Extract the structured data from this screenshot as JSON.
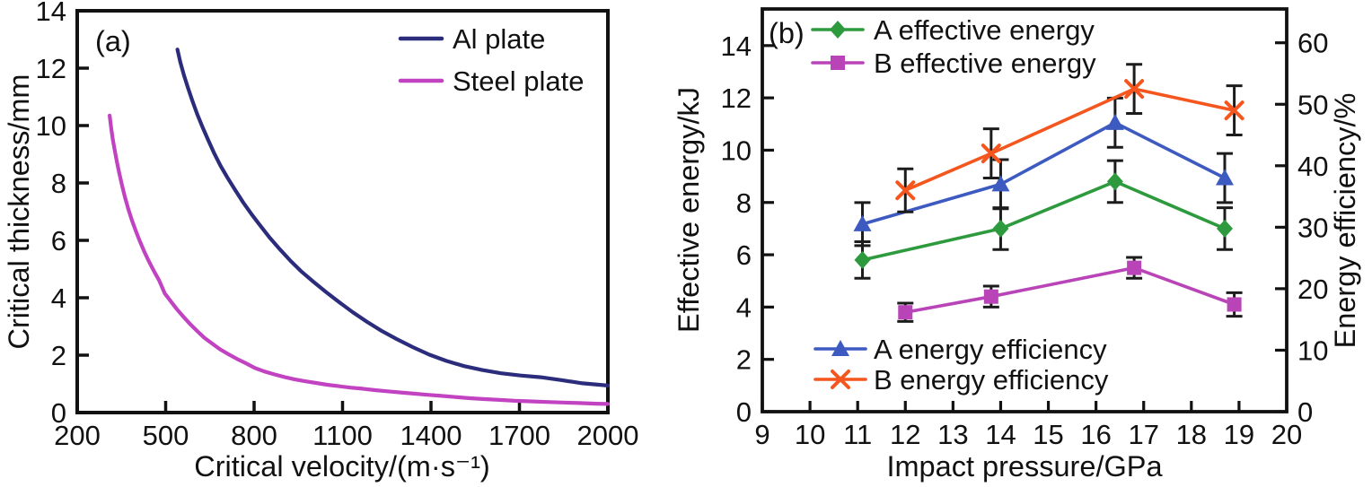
{
  "figure": {
    "background": "#ffffff",
    "axis_color": "#111111",
    "error_bar_color": "#1c1c1c"
  },
  "chart_data": [
    {
      "id": "a",
      "type": "line",
      "panel_label": "(a)",
      "xlabel": "Critical velocity/(m·s⁻¹)",
      "ylabel": "Critical thickness/mm",
      "xlim": [
        200,
        2000
      ],
      "ylim": [
        0,
        14
      ],
      "xticks": [
        200,
        500,
        800,
        1100,
        1400,
        1700,
        2000
      ],
      "yticks": [
        0,
        2,
        4,
        6,
        8,
        10,
        12,
        14
      ],
      "grid": false,
      "legend_position": "top-right",
      "series": [
        {
          "name": "Al plate",
          "color": "#2c2c7c",
          "marker": "none",
          "points": [
            [
              540,
              12.65
            ],
            [
              550,
              12.2
            ],
            [
              562,
              11.75
            ],
            [
              576,
              11.3
            ],
            [
              591,
              10.85
            ],
            [
              607,
              10.4
            ],
            [
              625,
              9.95
            ],
            [
              644,
              9.5
            ],
            [
              664,
              9.05
            ],
            [
              686,
              8.6
            ],
            [
              710,
              8.18
            ],
            [
              736,
              7.75
            ],
            [
              763,
              7.32
            ],
            [
              792,
              6.9
            ],
            [
              822,
              6.5
            ],
            [
              854,
              6.08
            ],
            [
              888,
              5.68
            ],
            [
              924,
              5.28
            ],
            [
              962,
              4.9
            ],
            [
              1002,
              4.55
            ],
            [
              1044,
              4.2
            ],
            [
              1088,
              3.85
            ],
            [
              1134,
              3.5
            ],
            [
              1182,
              3.17
            ],
            [
              1232,
              2.85
            ],
            [
              1284,
              2.56
            ],
            [
              1338,
              2.28
            ],
            [
              1394,
              2.02
            ],
            [
              1452,
              1.8
            ],
            [
              1512,
              1.62
            ],
            [
              1574,
              1.48
            ],
            [
              1638,
              1.37
            ],
            [
              1704,
              1.29
            ],
            [
              1772,
              1.23
            ],
            [
              1842,
              1.13
            ],
            [
              1914,
              1.02
            ],
            [
              2000,
              0.94
            ]
          ]
        },
        {
          "name": "Steel plate",
          "color": "#c143c1",
          "marker": "none",
          "points": [
            [
              310,
              10.35
            ],
            [
              315,
              9.92
            ],
            [
              321,
              9.5
            ],
            [
              328,
              9.1
            ],
            [
              335,
              8.72
            ],
            [
              343,
              8.32
            ],
            [
              352,
              7.92
            ],
            [
              362,
              7.5
            ],
            [
              373,
              7.1
            ],
            [
              385,
              6.72
            ],
            [
              398,
              6.35
            ],
            [
              412,
              5.98
            ],
            [
              427,
              5.62
            ],
            [
              443,
              5.27
            ],
            [
              460,
              4.93
            ],
            [
              478,
              4.6
            ],
            [
              497,
              4.15
            ],
            [
              517,
              3.88
            ],
            [
              538,
              3.6
            ],
            [
              560,
              3.34
            ],
            [
              583,
              3.08
            ],
            [
              607,
              2.84
            ],
            [
              632,
              2.6
            ],
            [
              658,
              2.4
            ],
            [
              685,
              2.2
            ],
            [
              713,
              2.03
            ],
            [
              742,
              1.87
            ],
            [
              772,
              1.72
            ],
            [
              803,
              1.55
            ],
            [
              835,
              1.43
            ],
            [
              868,
              1.33
            ],
            [
              902,
              1.24
            ],
            [
              937,
              1.16
            ],
            [
              973,
              1.09
            ],
            [
              1010,
              1.03
            ],
            [
              1048,
              0.97
            ],
            [
              1087,
              0.92
            ],
            [
              1127,
              0.87
            ],
            [
              1168,
              0.83
            ],
            [
              1210,
              0.78
            ],
            [
              1253,
              0.74
            ],
            [
              1297,
              0.7
            ],
            [
              1342,
              0.66
            ],
            [
              1388,
              0.62
            ],
            [
              1435,
              0.58
            ],
            [
              1483,
              0.54
            ],
            [
              1532,
              0.5
            ],
            [
              1582,
              0.47
            ],
            [
              1633,
              0.44
            ],
            [
              1685,
              0.41
            ],
            [
              1738,
              0.39
            ],
            [
              1792,
              0.37
            ],
            [
              1847,
              0.35
            ],
            [
              1903,
              0.33
            ],
            [
              1960,
              0.31
            ],
            [
              2000,
              0.3
            ]
          ]
        }
      ]
    },
    {
      "id": "b",
      "type": "line",
      "panel_label": "(b)",
      "xlabel": "Impact pressure/GPa",
      "ylabel_left": "Effective energy/kJ",
      "ylabel_right": "Energy efficiency/%",
      "xlim": [
        9,
        20
      ],
      "ylim_left": [
        0,
        15.4
      ],
      "ylim_right": [
        0,
        65.5
      ],
      "xticks": [
        9,
        10,
        11,
        12,
        13,
        14,
        15,
        16,
        17,
        18,
        19,
        20
      ],
      "yticks_left": [
        0,
        2,
        4,
        6,
        8,
        10,
        12,
        14
      ],
      "yticks_right": [
        0,
        10,
        20,
        30,
        40,
        50,
        60
      ],
      "grid": false,
      "series": [
        {
          "name": "A effective energy",
          "axis": "left",
          "color": "#2e9a3e",
          "marker": "diamond",
          "legend": "top",
          "x": [
            11.1,
            14.0,
            16.4,
            18.7
          ],
          "y": [
            5.8,
            7.0,
            8.8,
            7.0
          ],
          "yerr": [
            0.7,
            0.8,
            0.8,
            0.8
          ]
        },
        {
          "name": "B effective energy",
          "axis": "left",
          "color": "#b844b8",
          "marker": "square",
          "legend": "top",
          "x": [
            12.0,
            13.8,
            16.8,
            18.9
          ],
          "y": [
            3.8,
            4.4,
            5.5,
            4.1
          ],
          "yerr": [
            0.35,
            0.4,
            0.4,
            0.45
          ]
        },
        {
          "name": "A energy efficiency",
          "axis": "right",
          "color": "#3d5ac1",
          "marker": "triangle-up",
          "legend": "bottom",
          "x": [
            11.1,
            14.0,
            16.4,
            18.7
          ],
          "y": [
            30.5,
            37,
            47,
            38
          ],
          "yerr": [
            3.5,
            4,
            4,
            4
          ]
        },
        {
          "name": "B energy efficiency",
          "axis": "right",
          "color": "#f4561e",
          "marker": "x",
          "legend": "bottom",
          "x": [
            12.0,
            13.8,
            16.8,
            18.9
          ],
          "y": [
            36,
            42,
            52.5,
            49
          ],
          "yerr": [
            3.5,
            4,
            4,
            4
          ]
        }
      ]
    }
  ]
}
